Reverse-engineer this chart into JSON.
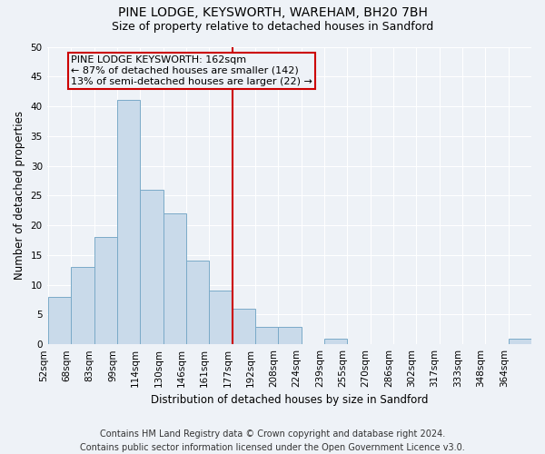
{
  "title_line1": "PINE LODGE, KEYSWORTH, WAREHAM, BH20 7BH",
  "title_line2": "Size of property relative to detached houses in Sandford",
  "xlabel": "Distribution of detached houses by size in Sandford",
  "ylabel": "Number of detached properties",
  "footer_line1": "Contains HM Land Registry data © Crown copyright and database right 2024.",
  "footer_line2": "Contains public sector information licensed under the Open Government Licence v3.0.",
  "categories": [
    "52sqm",
    "68sqm",
    "83sqm",
    "99sqm",
    "114sqm",
    "130sqm",
    "146sqm",
    "161sqm",
    "177sqm",
    "192sqm",
    "208sqm",
    "224sqm",
    "239sqm",
    "255sqm",
    "270sqm",
    "286sqm",
    "302sqm",
    "317sqm",
    "333sqm",
    "348sqm",
    "364sqm"
  ],
  "values": [
    8,
    13,
    18,
    41,
    26,
    22,
    14,
    9,
    6,
    3,
    3,
    0,
    1,
    0,
    0,
    0,
    0,
    0,
    0,
    0,
    1
  ],
  "bar_color": "#c9daea",
  "bar_edge_color": "#7aaac8",
  "vline_x_index": 7,
  "vline_color": "#cc0000",
  "vline_label_title": "PINE LODGE KEYSWORTH: 162sqm",
  "vline_label_line2": "← 87% of detached houses are smaller (142)",
  "vline_label_line3": "13% of semi-detached houses are larger (22) →",
  "annotation_box_color": "#cc0000",
  "ylim": [
    0,
    50
  ],
  "yticks": [
    0,
    5,
    10,
    15,
    20,
    25,
    30,
    35,
    40,
    45,
    50
  ],
  "background_color": "#eef2f7",
  "grid_color": "#ffffff",
  "title_fontsize": 10,
  "subtitle_fontsize": 9,
  "axis_label_fontsize": 8.5,
  "tick_fontsize": 7.5,
  "footer_fontsize": 7,
  "annotation_fontsize": 8
}
